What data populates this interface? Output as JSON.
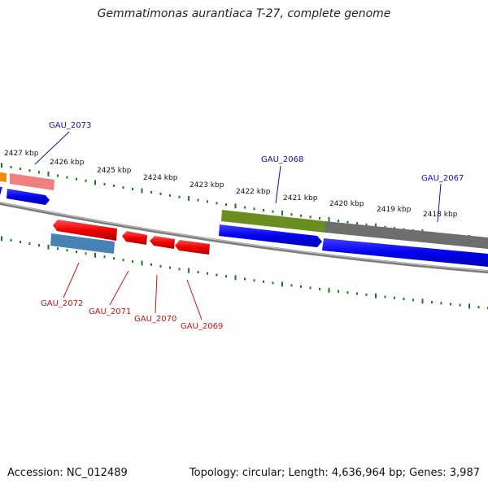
{
  "title": "Gemmatimonas aurantiaca T-27, complete genome",
  "footer": {
    "accession": "Accession: NC_012489",
    "summary": "Topology: circular; Length: 4,636,964 bp; Genes: 3,987"
  },
  "ticks": [
    "2427 kbp",
    "2426 kbp",
    "2425 kbp",
    "2424 kbp",
    "2423 kbp",
    "2422 kbp",
    "2421 kbp",
    "2420 kbp",
    "2419 kbp",
    "2418 kbp"
  ],
  "gene_labels": {
    "top": [
      "GAU_2073",
      "GAU_2068",
      "GAU_2067"
    ],
    "bottom": [
      "GAU_2072",
      "GAU_2071",
      "GAU_2070",
      "GAU_2069"
    ]
  },
  "colors": {
    "backbone": "#7a7a7a",
    "tick_green": "#1a7a1a",
    "forward_cds": "#0000ee",
    "reverse_cds": "#ee0000",
    "top_label": "#1010b0",
    "bottom_label": "#d01010",
    "olive_feature": "#6b8e23",
    "pink_feature": "#f08080",
    "steel_feature": "#4682b4",
    "orange_feature": "#ff8c00",
    "gray_feature": "#6e6e6e"
  }
}
